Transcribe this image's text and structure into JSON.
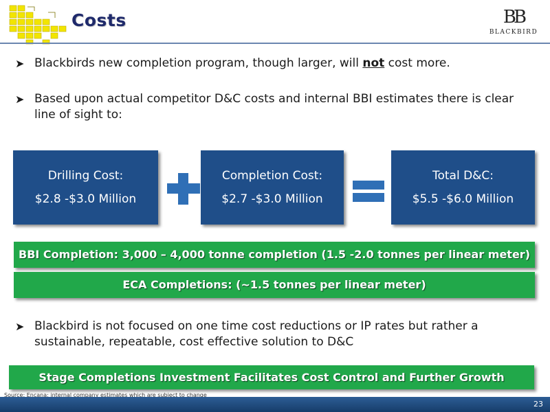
{
  "header": {
    "title": "Costs",
    "brand_mark": "BB",
    "brand_name": "BLACKBIRD"
  },
  "bullets": [
    {
      "before": "Blackbirds new completion program, though larger, will ",
      "emph": "not",
      "after": " cost more."
    },
    {
      "text": "Based upon actual competitor D&C costs and internal BBI estimates there is clear line of sight to:"
    },
    {
      "text": "Blackbird is not focused on one time cost reductions or IP rates but rather a sustainable, repeatable, cost effective solution to D&C"
    }
  ],
  "cost_boxes": [
    {
      "label": "Drilling Cost:",
      "value": "$2.8 -$3.0 Million"
    },
    {
      "label": "Completion Cost:",
      "value": "$2.7 -$3.0 Million"
    },
    {
      "label": "Total D&C:",
      "value": "$5.5 -$6.0 Million"
    }
  ],
  "banners": [
    "BBI Completion: 3,000 – 4,000 tonne completion (1.5 -2.0 tonnes per linear meter)",
    "ECA Completions: (~1.5 tonnes per linear meter)",
    "Stage Completions Investment Facilitates Cost Control and Further Growth"
  ],
  "footer": {
    "source": "Source: Encana; internal company estimates which are subject to change",
    "page_number": "23"
  },
  "colors": {
    "box_blue": "#1f4e89",
    "symbol_blue": "#2f6fb6",
    "banner_green": "#21a84a",
    "footer_blue": "#1c4a7e",
    "logo_yellow": "#f2e500"
  },
  "icons": {
    "left_logo": "puzzle-grid-logo-icon",
    "plus": "plus-icon",
    "equals": "equals-icon",
    "bullet": "arrow-bullet-icon"
  }
}
